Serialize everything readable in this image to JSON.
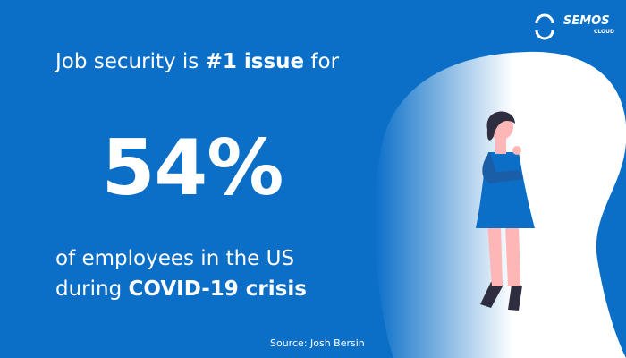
{
  "logo": {
    "name": "SEMOS",
    "sub": "CLOUD"
  },
  "headline": {
    "pre": "Job security is ",
    "bold": "#1 issue",
    "post": " for"
  },
  "stat": "54%",
  "caption": {
    "line1": "of employees in the US",
    "pre": "during ",
    "bold": "COVID-19 crisis"
  },
  "source": "Source: Josh Bersin"
}
